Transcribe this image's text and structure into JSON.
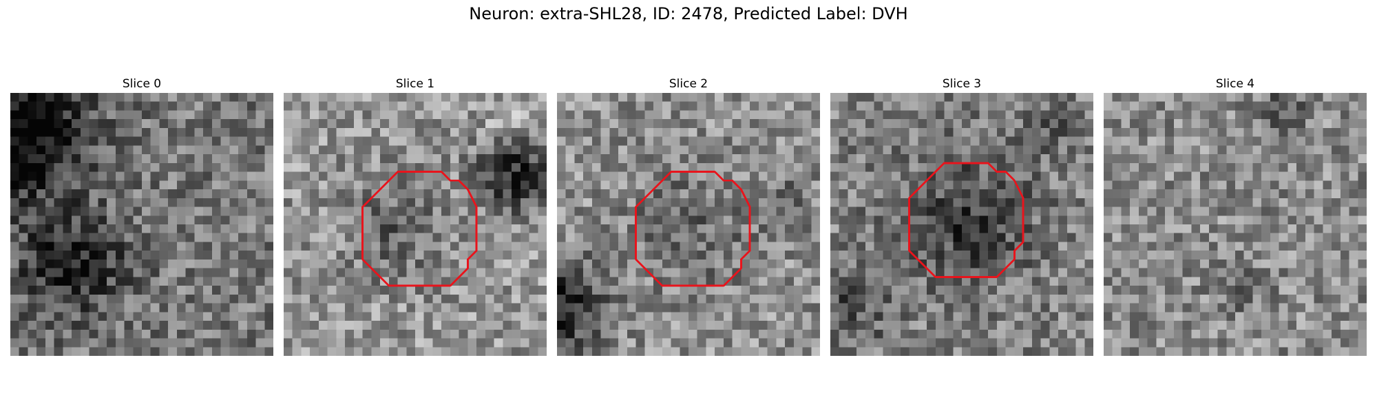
{
  "figure": {
    "title": "Neuron: extra-SHL28, ID: 2478, Predicted Label: DVH"
  },
  "panels": [
    {
      "title": "Slice 0",
      "contour": false,
      "blobs": [
        [
          1,
          4,
          5,
          -140
        ],
        [
          3,
          -1,
          1.5,
          -30
        ],
        [
          6,
          19,
          4,
          -95
        ],
        [
          14,
          18,
          2,
          -25
        ]
      ],
      "base": 120
    },
    {
      "title": "Slice 1",
      "contour": true,
      "blobs": [
        [
          26,
          9,
          3,
          -110
        ],
        [
          12,
          15,
          4,
          -50
        ],
        [
          25,
          3,
          1.5,
          40
        ]
      ],
      "base": 150
    },
    {
      "title": "Slice 2",
      "contour": true,
      "blobs": [
        [
          0,
          24,
          3.5,
          -120
        ],
        [
          15,
          15,
          5,
          -40
        ],
        [
          26,
          12,
          2,
          -40
        ]
      ],
      "base": 145
    },
    {
      "title": "Slice 3",
      "contour": true,
      "blobs": [
        [
          15,
          14,
          5,
          -70
        ],
        [
          2,
          24,
          3,
          -50
        ],
        [
          25,
          3,
          2,
          -40
        ]
      ],
      "base": 130
    },
    {
      "title": "Slice 4",
      "contour": false,
      "blobs": [
        [
          20,
          1,
          2,
          -50
        ],
        [
          15,
          22,
          2,
          -30
        ]
      ],
      "base": 140
    }
  ],
  "colors": {
    "contour": "#e8141c",
    "background": "#ffffff"
  }
}
